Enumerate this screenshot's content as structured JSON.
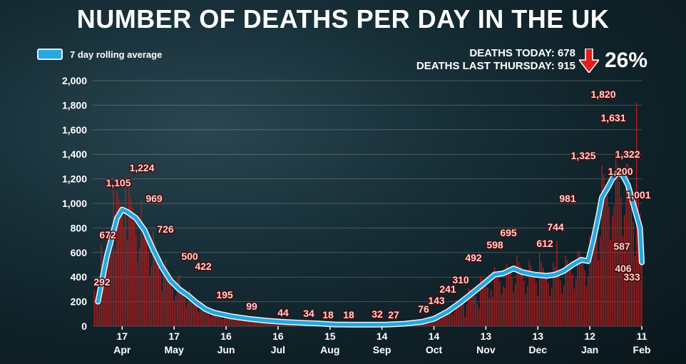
{
  "title": "NUMBER OF DEATHS PER DAY IN THE UK",
  "legend": {
    "label": "7 day rolling average"
  },
  "stats": {
    "today": "DEATHS TODAY: 678",
    "last_thursday": "DEATHS LAST THURSDAY: 915",
    "percent": "26%"
  },
  "colors": {
    "bars": "#b71c1c",
    "average_line": "#27a7de",
    "arrow": "#e02020"
  },
  "chart_data": {
    "type": "bar",
    "title": "NUMBER OF DEATHS PER DAY IN THE UK",
    "xlabel": "",
    "ylabel": "",
    "ylim": [
      0,
      2000
    ],
    "yticks": [
      0,
      200,
      400,
      600,
      800,
      1000,
      1200,
      1400,
      1600,
      1800,
      2000
    ],
    "ytick_labels": [
      "0",
      "200",
      "400",
      "600",
      "800",
      "1,000",
      "1,200",
      "1,400",
      "1,600",
      "1,800",
      "2,000"
    ],
    "grid": true,
    "legend_position": "top-left",
    "x_ticks": [
      {
        "day": 17,
        "label": "17",
        "month": "Apr"
      },
      {
        "day": 47,
        "label": "17",
        "month": "May"
      },
      {
        "day": 77,
        "label": "16",
        "month": "Jun"
      },
      {
        "day": 107,
        "label": "16",
        "month": "Jul"
      },
      {
        "day": 137,
        "label": "15",
        "month": "Aug"
      },
      {
        "day": 167,
        "label": "14",
        "month": "Sep"
      },
      {
        "day": 197,
        "label": "14",
        "month": "Oct"
      },
      {
        "day": 227,
        "label": "13",
        "month": "Nov"
      },
      {
        "day": 257,
        "label": "13",
        "month": "Dec"
      },
      {
        "day": 287,
        "label": "12",
        "month": "Jan"
      },
      {
        "day": 317,
        "label": "11",
        "month": "Feb"
      }
    ],
    "x_range_days": [
      0,
      317
    ],
    "annotations": [
      {
        "day": 1,
        "value": 292,
        "label": "292"
      },
      {
        "day": 5,
        "value": 672,
        "label": "672"
      },
      {
        "day": 12,
        "value": 1105,
        "label": "1,105"
      },
      {
        "day": 19,
        "value": 1224,
        "label": "1,224"
      },
      {
        "day": 23,
        "value": 969,
        "label": "969"
      },
      {
        "day": 29,
        "value": 726,
        "label": "726"
      },
      {
        "day": 41,
        "value": 500,
        "label": "500"
      },
      {
        "day": 50,
        "value": 422,
        "label": "422"
      },
      {
        "day": 60,
        "value": 195,
        "label": "195"
      },
      {
        "day": 83,
        "value": 99,
        "label": "99"
      },
      {
        "day": 110,
        "value": 44,
        "label": "44"
      },
      {
        "day": 128,
        "value": 34,
        "label": "34"
      },
      {
        "day": 146,
        "value": 18,
        "label": "18"
      },
      {
        "day": 163,
        "value": 18,
        "label": "18"
      },
      {
        "day": 184,
        "value": 32,
        "label": "32"
      },
      {
        "day": 191,
        "value": 27,
        "label": "27"
      },
      {
        "day": 215,
        "value": 76,
        "label": "76"
      },
      {
        "day": 223,
        "value": 143,
        "label": "143"
      },
      {
        "day": 231,
        "value": 241,
        "label": "241"
      },
      {
        "day": 238,
        "value": 310,
        "label": "310"
      },
      {
        "day": 247,
        "value": 492,
        "label": "492"
      },
      {
        "day": 258,
        "value": 598,
        "label": "598"
      },
      {
        "day": 268,
        "value": 695,
        "label": "695"
      },
      {
        "day": 280,
        "value": 612,
        "label": "612"
      },
      {
        "day": 291,
        "value": 744,
        "label": "744"
      },
      {
        "day": 301,
        "value": 981,
        "label": "981"
      },
      {
        "day": 308,
        "value": 1325,
        "label": "1,325"
      },
      {
        "day": 314,
        "value": 1820,
        "label": "1,820"
      },
      {
        "day": 316,
        "value": 1631,
        "label": "1,631"
      },
      {
        "day": 316,
        "value": 1322,
        "label": "1,322"
      },
      {
        "day": 316,
        "value": 1200,
        "label": "1,200"
      },
      {
        "day": 316,
        "value": 1001,
        "label": "1,001"
      },
      {
        "day": 316,
        "value": 587,
        "label": "587"
      },
      {
        "day": 316,
        "value": 406,
        "label": "406"
      },
      {
        "day": 316,
        "value": 333,
        "label": "333"
      }
    ],
    "rolling_average": [
      [
        3,
        200
      ],
      [
        8,
        560
      ],
      [
        14,
        880
      ],
      [
        17,
        950
      ],
      [
        20,
        930
      ],
      [
        25,
        880
      ],
      [
        30,
        780
      ],
      [
        35,
        620
      ],
      [
        40,
        480
      ],
      [
        45,
        370
      ],
      [
        50,
        300
      ],
      [
        55,
        250
      ],
      [
        60,
        190
      ],
      [
        65,
        140
      ],
      [
        70,
        110
      ],
      [
        80,
        80
      ],
      [
        90,
        60
      ],
      [
        100,
        45
      ],
      [
        110,
        35
      ],
      [
        120,
        28
      ],
      [
        130,
        22
      ],
      [
        140,
        14
      ],
      [
        150,
        12
      ],
      [
        160,
        12
      ],
      [
        170,
        13
      ],
      [
        180,
        20
      ],
      [
        190,
        35
      ],
      [
        197,
        60
      ],
      [
        205,
        120
      ],
      [
        212,
        190
      ],
      [
        220,
        280
      ],
      [
        227,
        360
      ],
      [
        232,
        420
      ],
      [
        237,
        430
      ],
      [
        243,
        470
      ],
      [
        248,
        440
      ],
      [
        255,
        420
      ],
      [
        262,
        410
      ],
      [
        267,
        420
      ],
      [
        272,
        450
      ],
      [
        277,
        500
      ],
      [
        282,
        540
      ],
      [
        286,
        530
      ],
      [
        289,
        700
      ],
      [
        292,
        900
      ],
      [
        294,
        1050
      ],
      [
        297,
        1120
      ],
      [
        300,
        1200
      ],
      [
        303,
        1250
      ],
      [
        306,
        1230
      ],
      [
        309,
        1150
      ],
      [
        312,
        1000
      ],
      [
        314,
        900
      ],
      [
        316,
        800
      ],
      [
        317,
        520
      ]
    ]
  }
}
